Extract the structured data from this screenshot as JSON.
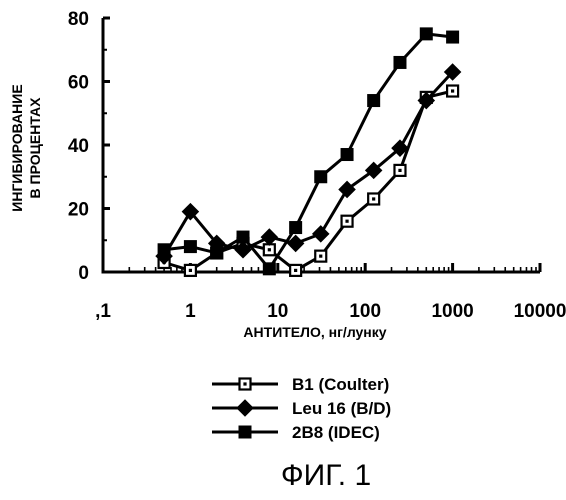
{
  "chart_data": {
    "type": "line",
    "xlabel": "АНТИТЕЛО, нг/лунку",
    "ylabel_lines": [
      "ИНГИБИРОВАНИЕ",
      "В ПРОЦЕНТАХ"
    ],
    "x_scale": "log",
    "xlim": [
      0.1,
      10000
    ],
    "ylim": [
      0,
      80
    ],
    "x_ticks": [
      {
        "value": 0.1,
        "label": ",1"
      },
      {
        "value": 1,
        "label": "1"
      },
      {
        "value": 10,
        "label": "10"
      },
      {
        "value": 100,
        "label": "100"
      },
      {
        "value": 1000,
        "label": "1000"
      },
      {
        "value": 10000,
        "label": "10000"
      }
    ],
    "y_ticks": [
      {
        "value": 0,
        "label": "0"
      },
      {
        "value": 20,
        "label": "20"
      },
      {
        "value": 40,
        "label": "40"
      },
      {
        "value": 60,
        "label": "60"
      },
      {
        "value": 80,
        "label": "80"
      }
    ],
    "grid": false,
    "legend_position": "bottom-center",
    "series": [
      {
        "name": "B1 (Coulter)",
        "marker": "open-square",
        "x": [
          0.5,
          1,
          2,
          4,
          8,
          16,
          31,
          62,
          125,
          250,
          500,
          1000
        ],
        "y": [
          3,
          0.5,
          6,
          9,
          7,
          0.5,
          5,
          16,
          23,
          32,
          55,
          57
        ]
      },
      {
        "name": "Leu 16 (B/D)",
        "marker": "filled-diamond",
        "x": [
          0.5,
          1,
          2,
          4,
          8,
          16,
          31,
          62,
          125,
          250,
          500,
          1000
        ],
        "y": [
          5,
          19,
          9,
          7,
          11,
          9,
          12,
          26,
          32,
          39,
          54,
          63
        ]
      },
      {
        "name": "2B8 (IDEC)",
        "marker": "filled-square",
        "x": [
          0.5,
          1,
          2,
          4,
          8,
          16,
          31,
          62,
          125,
          250,
          500,
          1000
        ],
        "y": [
          7,
          8,
          6,
          11,
          1,
          14,
          30,
          37,
          54,
          66,
          75,
          74
        ]
      }
    ],
    "caption": "ФИГ. 1"
  }
}
